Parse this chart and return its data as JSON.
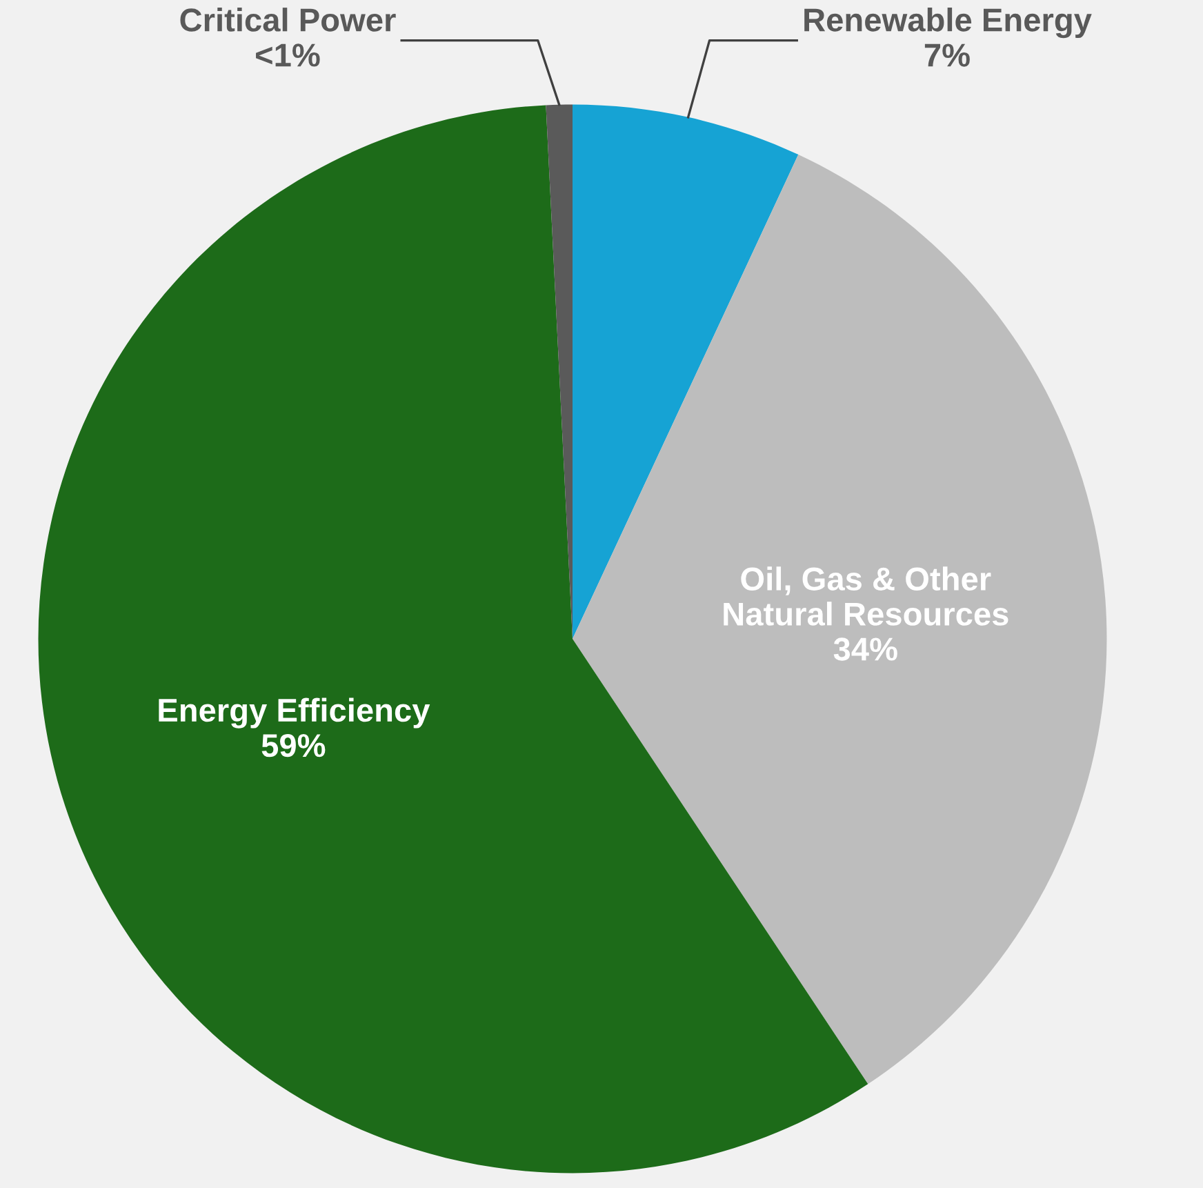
{
  "chart_data": {
    "type": "pie",
    "categories": [
      "Renewable Energy",
      "Oil, Gas & Other\nNatural Resources",
      "Energy Efficiency",
      "Critical Power"
    ],
    "values": [
      7,
      34,
      59,
      0.8
    ],
    "value_labels": [
      "7%",
      "34%",
      "59%",
      "<1%"
    ],
    "colors": [
      "#16a3d4",
      "#bdbdbd",
      "#1d6b19",
      "#5a5a5a"
    ],
    "legend": false
  }
}
